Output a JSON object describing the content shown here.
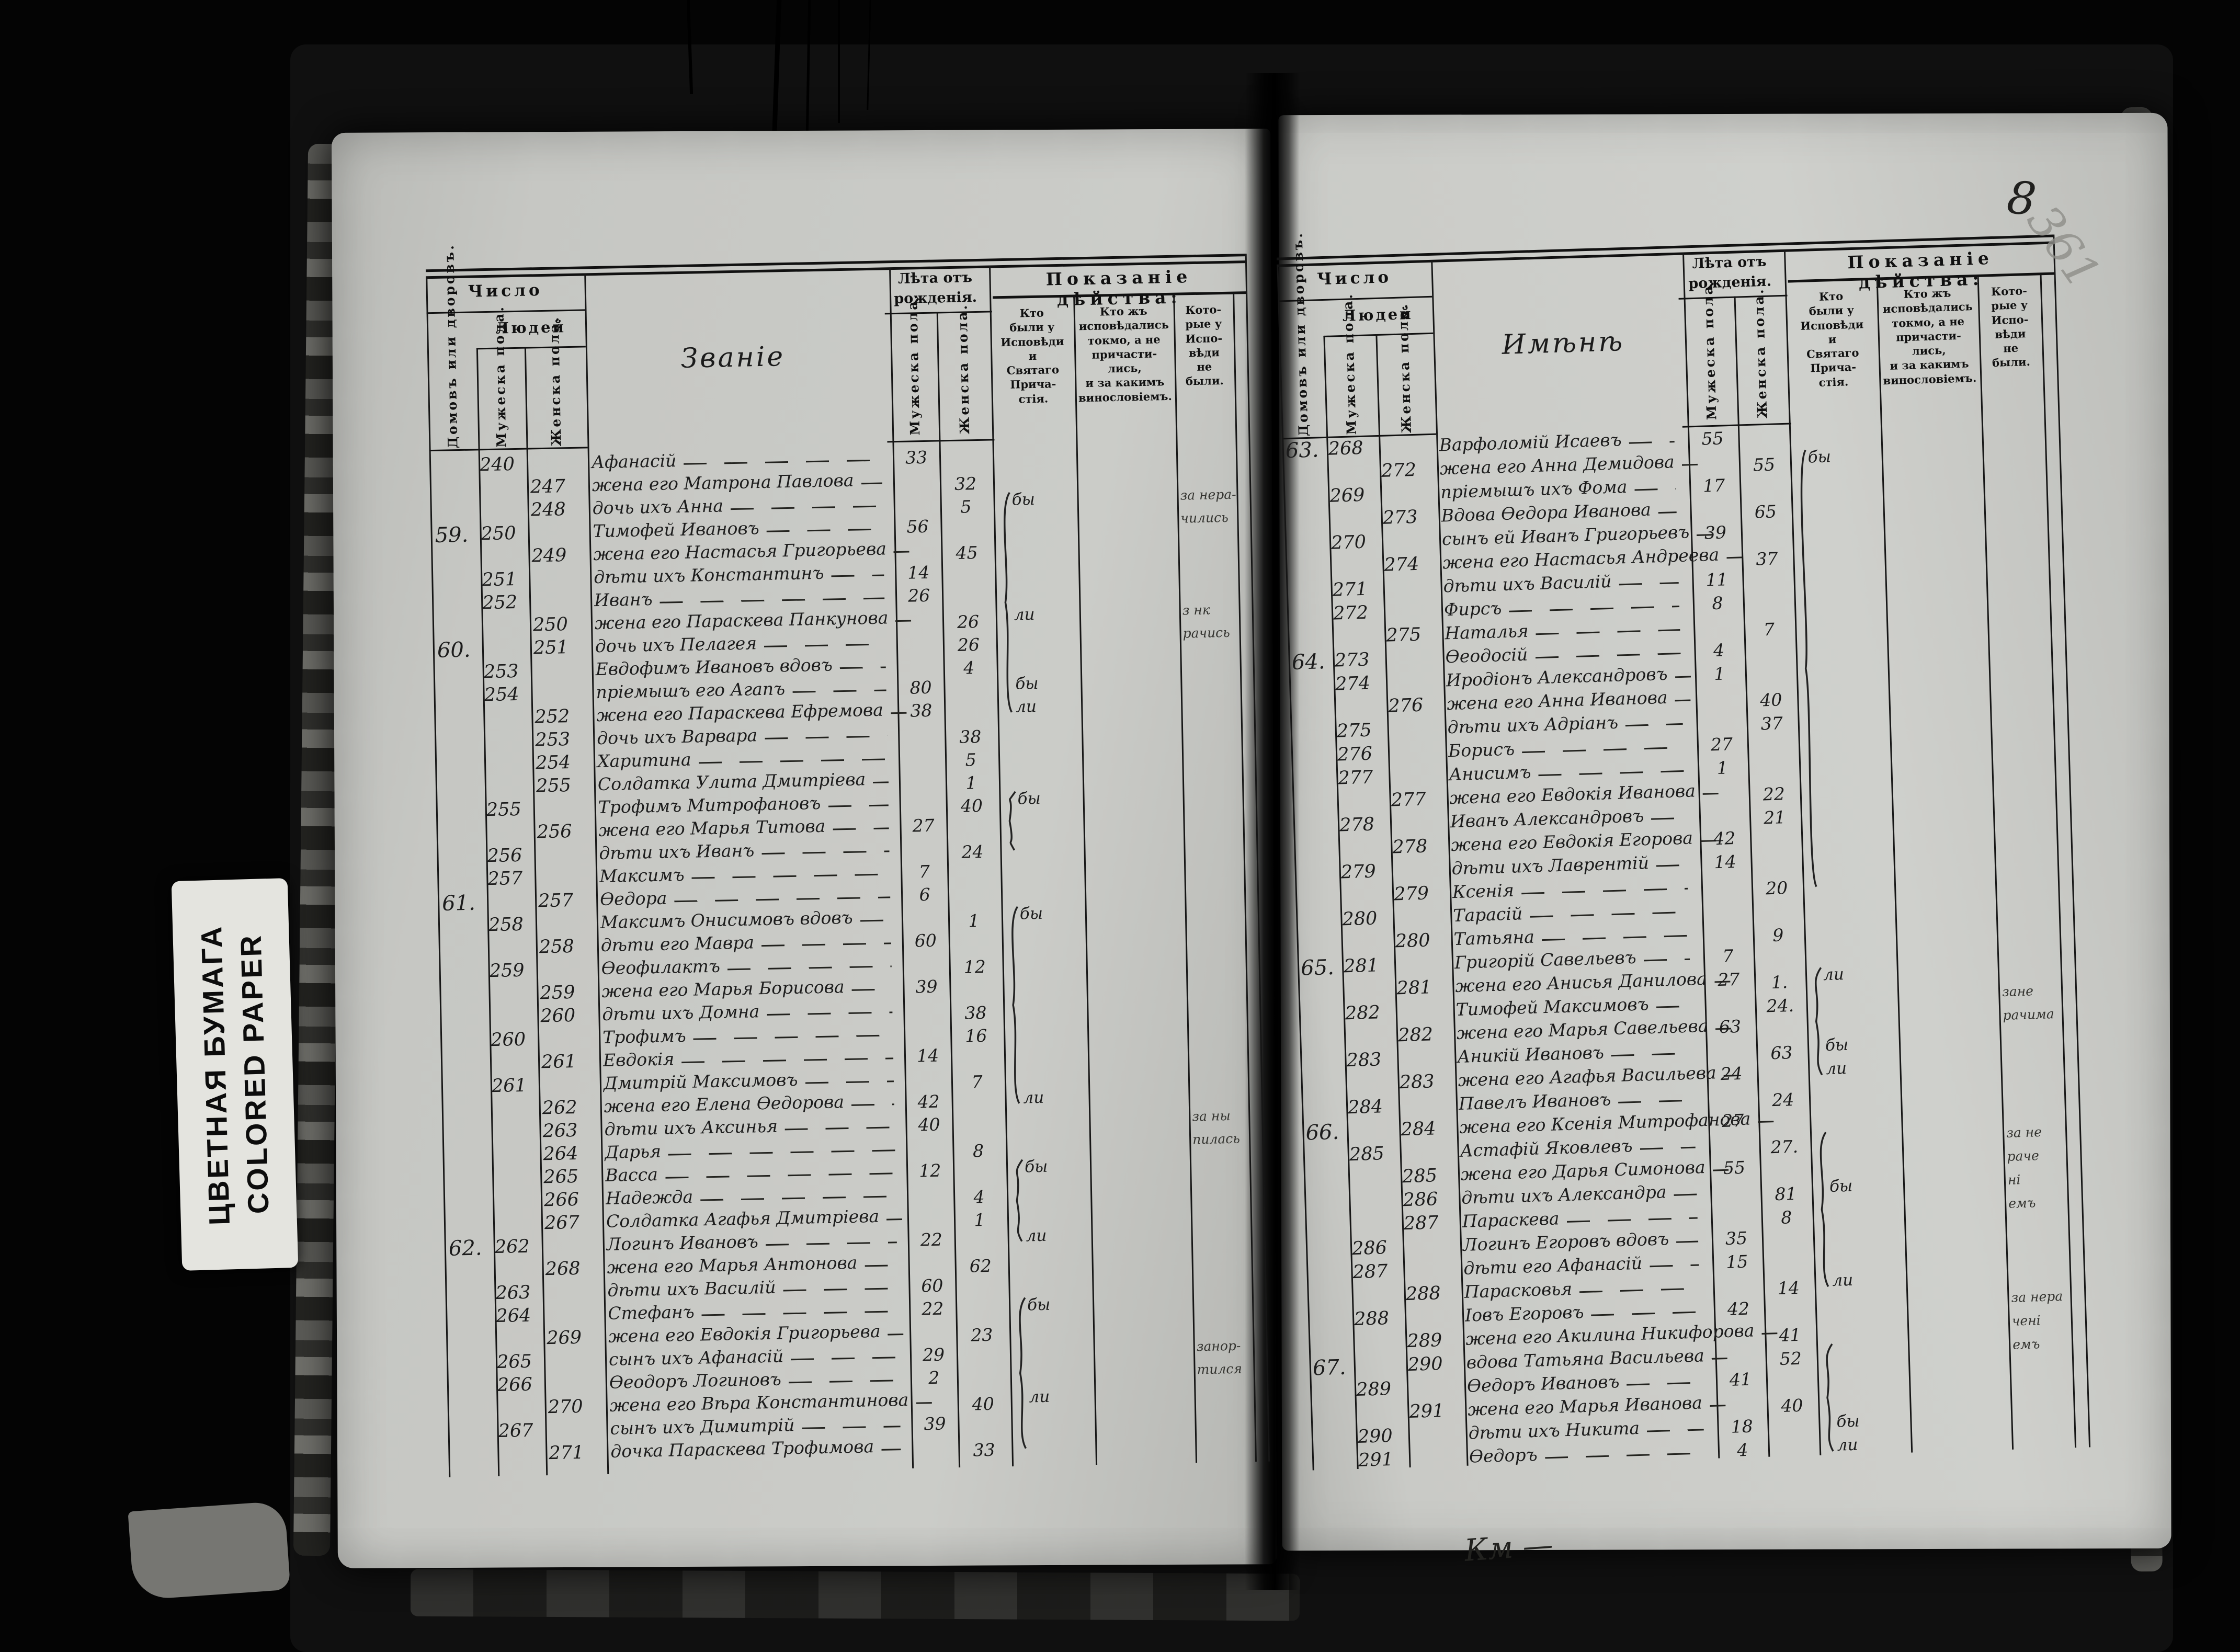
{
  "sticker": {
    "line1": "ЦВЕТНАЯ БУМАГА",
    "line2": "COLORED PAPER"
  },
  "annotations": {
    "ink_page_number": "8",
    "pencil_folio_number": "361",
    "bottom_flourish": "Км —"
  },
  "headers": {
    "number": "Число",
    "people": "Людей",
    "households_vertical": "Домовъ или дворовъ.",
    "male_vertical": "Мужеска пола.",
    "female_vertical": "Женска пола.",
    "age_line1": "Лѣта отъ",
    "age_line2": "рожденія.",
    "testimony": "Показаніе дѣйства:",
    "attended_lines": [
      "Кто",
      "были у",
      "Исповѣди",
      "и",
      "Святаго",
      "Прича-",
      "стія."
    ],
    "confessed_only_lines": [
      "Кто жъ",
      "исповѣдались",
      "токмо, а не",
      "причасти-",
      "лись,",
      "и за какимъ",
      "винословіемъ."
    ],
    "absent_lines": [
      "Кото-",
      "рые у",
      "Испо-",
      "вѣди",
      "не",
      "были."
    ]
  },
  "pages": [
    {
      "col_title": "Званіе",
      "rows": [
        {
          "m": "240",
          "n": "Афанасій",
          "ma": "33"
        },
        {
          "f": "247",
          "n": "жена его Матрона Павлова",
          "fa": "32"
        },
        {
          "f": "248",
          "n": "дочь ихъ Анна",
          "fa": "5",
          "k": "бы",
          "t": "за нера-"
        },
        {
          "h": "59.",
          "m": "250",
          "n": "Тимофей Ивановъ",
          "ma": "56",
          "t": "чились"
        },
        {
          "f": "249",
          "n": "жена его Настасья Григорьева",
          "fa": "45"
        },
        {
          "m": "251",
          "n": "дѣти ихъ Константинъ",
          "ma": "14"
        },
        {
          "m": "252",
          "n": "Иванъ",
          "ma": "26"
        },
        {
          "f": "250",
          "n": "жена его Параскева Панкунова",
          "fa": "26",
          "k": "ли",
          "t": "з нк"
        },
        {
          "h": "60.",
          "f": "251",
          "n": "дочь ихъ Пелагея",
          "fa": "26",
          "t": "рачись"
        },
        {
          "m": "253",
          "n": "Евдофимъ Ивановъ вдовъ",
          "fa": "4"
        },
        {
          "m": "254",
          "n": "пріемышъ его Агапъ",
          "ma": "80",
          "k": "бы"
        },
        {
          "f": "252",
          "n": "жена его Параскева Ефремова",
          "ma": "38",
          "k": "ли"
        },
        {
          "f": "253",
          "n": "дочь ихъ Варвара",
          "fa": "38"
        },
        {
          "f": "254",
          "n": "Харитина",
          "fa": "5"
        },
        {
          "f": "255",
          "n": "Солдатка Улита Дмитріева",
          "fa": "1"
        },
        {
          "m": "255",
          "n": "Трофимъ Митрофановъ",
          "fa": "40",
          "k": "бы"
        },
        {
          "f": "256",
          "n": "жена его Марья Титова",
          "ma": "27"
        },
        {
          "m": "256",
          "n": "дѣти ихъ Иванъ",
          "fa": "24"
        },
        {
          "m": "257",
          "n": "Максимъ",
          "ma": "7"
        },
        {
          "h": "61.",
          "f": "257",
          "n": "Ѳедора",
          "ma": "6"
        },
        {
          "m": "258",
          "n": "Максимъ Онисимовъ вдовъ",
          "fa": "1",
          "k": "бы"
        },
        {
          "f": "258",
          "n": "дѣти его Мавра",
          "ma": "60"
        },
        {
          "m": "259",
          "n": "Ѳеофилактъ",
          "fa": "12"
        },
        {
          "f": "259",
          "n": "жена его Марья Борисова",
          "ma": "39"
        },
        {
          "f": "260",
          "n": "дѣти ихъ Домна",
          "fa": "38"
        },
        {
          "m": "260",
          "n": "Трофимъ",
          "fa": "16"
        },
        {
          "f": "261",
          "n": "Евдокія",
          "ma": "14"
        },
        {
          "m": "261",
          "n": "Дмитрій Максимовъ",
          "fa": "7"
        },
        {
          "f": "262",
          "n": "жена его Елена Ѳедорова",
          "ma": "42",
          "k": "ли"
        },
        {
          "f": "263",
          "n": "дѣти ихъ Аксинья",
          "ma": "40",
          "t": "за ны"
        },
        {
          "f": "264",
          "n": "Дарья",
          "fa": "8",
          "t": "пилась"
        },
        {
          "f": "265",
          "n": "Васса",
          "ma": "12",
          "k": "бы"
        },
        {
          "f": "266",
          "n": "Надежда",
          "fa": "4"
        },
        {
          "f": "267",
          "n": "Солдатка Агафья Дмитріева",
          "fa": "1"
        },
        {
          "h": "62.",
          "m": "262",
          "n": "Логинъ Ивановъ",
          "ma": "22",
          "k": "ли"
        },
        {
          "f": "268",
          "n": "жена его Марья Антонова",
          "fa": "62"
        },
        {
          "m": "263",
          "n": "дѣти ихъ Василій",
          "ma": "60"
        },
        {
          "m": "264",
          "n": "Стефанъ",
          "ma": "22",
          "k": "бы"
        },
        {
          "f": "269",
          "n": "жена его Евдокія Григорьева",
          "fa": "23"
        },
        {
          "m": "265",
          "n": "сынъ ихъ Афанасій",
          "ma": "29",
          "t": "занор-"
        },
        {
          "m": "266",
          "n": "Ѳеодоръ Логиновъ",
          "ma": "2",
          "t": "тился"
        },
        {
          "f": "270",
          "n": "жена его Вѣра Константинова",
          "fa": "40",
          "k": "ли"
        },
        {
          "m": "267",
          "n": "сынъ ихъ Димитрій",
          "ma": "39"
        },
        {
          "f": "271",
          "n": "дочка Параскева Трофимова",
          "fa": "33"
        }
      ]
    },
    {
      "col_title": "Имѣнѣ",
      "rows": [
        {
          "h": "63.",
          "m": "268",
          "n": "Варфоломій Исаевъ",
          "ma": "55"
        },
        {
          "f": "272",
          "n": "жена его Анна Демидова",
          "fa": "55",
          "k": "бы"
        },
        {
          "m": "269",
          "n": "пріемышъ ихъ Фома",
          "ma": "17"
        },
        {
          "f": "273",
          "n": "Вдова Ѳедора Иванова",
          "fa": "65"
        },
        {
          "m": "270",
          "n": "сынъ ей Иванъ Григорьевъ",
          "ma": "39"
        },
        {
          "f": "274",
          "n": "жена его Настасья Андреева",
          "fa": "37"
        },
        {
          "m": "271",
          "n": "дѣти ихъ Василій",
          "ma": "11"
        },
        {
          "m": "272",
          "n": "Фирсъ",
          "ma": "8"
        },
        {
          "f": "275",
          "n": "Наталья",
          "fa": "7"
        },
        {
          "h": "64.",
          "m": "273",
          "n": "Ѳеодосій",
          "ma": "4"
        },
        {
          "m": "274",
          "n": "Иродіонъ Александровъ",
          "ma": "1"
        },
        {
          "f": "276",
          "n": "жена его Анна Иванова",
          "fa": "40"
        },
        {
          "m": "275",
          "n": "дѣти ихъ Адріанъ",
          "fa": "37"
        },
        {
          "m": "276",
          "n": "Борисъ",
          "ma": "27"
        },
        {
          "m": "277",
          "n": "Анисимъ",
          "ma": "1"
        },
        {
          "f": "277",
          "n": "жена его Евдокія Иванова",
          "fa": "22"
        },
        {
          "m": "278",
          "n": "Иванъ Александровъ",
          "fa": "21"
        },
        {
          "f": "278",
          "n": "жена его Евдокія Егорова",
          "ma": "42"
        },
        {
          "m": "279",
          "n": "дѣти ихъ Лаврентій",
          "ma": "14"
        },
        {
          "f": "279",
          "n": "Ксенія",
          "fa": "20"
        },
        {
          "m": "280",
          "n": "Тарасій"
        },
        {
          "f": "280",
          "n": "Татьяна",
          "fa": "9"
        },
        {
          "h": "65.",
          "m": "281",
          "n": "Григорій Савельевъ",
          "ma": "7"
        },
        {
          "f": "281",
          "n": "жена его Анисья Данилова",
          "ma": "27",
          "fa": "1.",
          "k": "ли"
        },
        {
          "m": "282",
          "n": "Тимофей Максимовъ",
          "fa": "24.",
          "t": "зане"
        },
        {
          "f": "282",
          "n": "жена его Марья Савельева",
          "ma": "63",
          "t": "рачима"
        },
        {
          "m": "283",
          "n": "Аникій Ивановъ",
          "fa": "63",
          "k": "бы"
        },
        {
          "f": "283",
          "n": "жена его Агафья Васильева",
          "ma": "24",
          "k": "ли"
        },
        {
          "m": "284",
          "n": "Павелъ Ивановъ",
          "fa": "24"
        },
        {
          "h": "66.",
          "f": "284",
          "n": "жена его Ксенія Митрофанова",
          "ma": "27"
        },
        {
          "m": "285",
          "n": "Астафій Яковлевъ",
          "fa": "27.",
          "t": "за не"
        },
        {
          "f": "285",
          "n": "жена его Дарья Симонова",
          "ma": "55",
          "t": "раче"
        },
        {
          "f": "286",
          "n": "дѣти ихъ Александра",
          "fa": "81",
          "k": "бы",
          "t": "ні"
        },
        {
          "f": "287",
          "n": "Параскева",
          "fa": "8",
          "t": "емъ"
        },
        {
          "m": "286",
          "n": "Логинъ Егоровъ вдовъ",
          "ma": "35"
        },
        {
          "m": "287",
          "n": "дѣти его Афанасій",
          "ma": "15"
        },
        {
          "f": "288",
          "n": "Парасковья",
          "fa": "14",
          "k": "ли"
        },
        {
          "m": "288",
          "n": "Іовъ Егоровъ",
          "ma": "42",
          "t": "за нера"
        },
        {
          "f": "289",
          "n": "жена его Акилина Никифорова",
          "fa": "41",
          "t": "чені"
        },
        {
          "h": "67.",
          "f": "290",
          "n": "вдова Татьяна Васильева",
          "fa": "52",
          "t": "емъ"
        },
        {
          "m": "289",
          "n": "Ѳедоръ Ивановъ",
          "ma": "41"
        },
        {
          "f": "291",
          "n": "жена его Марья Иванова",
          "fa": "40"
        },
        {
          "m": "290",
          "n": "дѣти ихъ Никита",
          "ma": "18",
          "k": "бы"
        },
        {
          "m": "291",
          "n": "Ѳедоръ",
          "ma": "4",
          "k": "ли"
        }
      ]
    }
  ]
}
